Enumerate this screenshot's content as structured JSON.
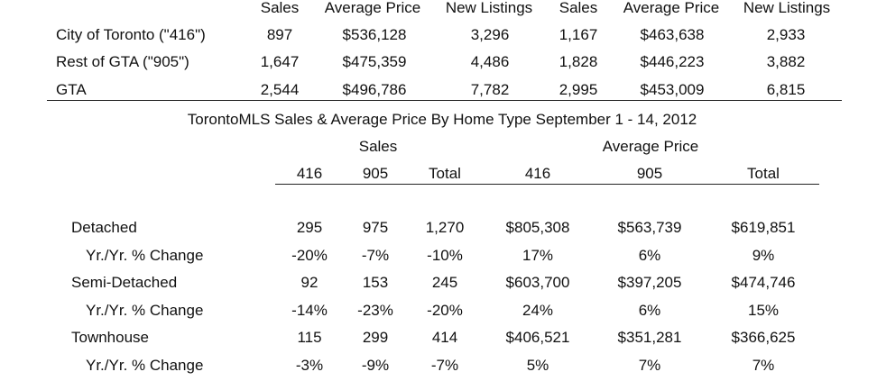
{
  "top_table": {
    "headers": [
      "Sales",
      "Average Price",
      "New Listings",
      "Sales",
      "Average Price",
      "New Listings"
    ],
    "rows": [
      {
        "label": "City of Toronto (\"416\")",
        "values": [
          "897",
          "$536,128",
          "3,296",
          "1,167",
          "$463,638",
          "2,933"
        ]
      },
      {
        "label": "Rest of GTA (\"905\")",
        "values": [
          "1,647",
          "$475,359",
          "4,486",
          "1,828",
          "$446,223",
          "3,882"
        ]
      },
      {
        "label": "GTA",
        "values": [
          "2,544",
          "$496,786",
          "7,782",
          "2,995",
          "$453,009",
          "6,815"
        ]
      }
    ]
  },
  "home_type_table": {
    "title": "TorontoMLS Sales & Average Price  By Home Type September 1 - 14, 2012",
    "group_headers": [
      "Sales",
      "Average Price"
    ],
    "sub_headers": [
      "416",
      "905",
      "Total",
      "416",
      "905",
      "Total"
    ],
    "rows": [
      {
        "label": "Detached",
        "values": [
          "295",
          "975",
          "1,270",
          "$805,308",
          "$563,739",
          "$619,851"
        ]
      },
      {
        "label": "Yr./Yr. % Change",
        "values": [
          "-20%",
          "-7%",
          "-10%",
          "17%",
          "6%",
          "9%"
        ]
      },
      {
        "label": "Semi-Detached",
        "values": [
          "92",
          "153",
          "245",
          "$603,700",
          "$397,205",
          "$474,746"
        ]
      },
      {
        "label": "Yr./Yr. % Change",
        "values": [
          "-14%",
          "-23%",
          "-20%",
          "24%",
          "6%",
          "15%"
        ]
      },
      {
        "label": "Townhouse",
        "values": [
          "115",
          "299",
          "414",
          "$406,521",
          "$351,281",
          "$366,625"
        ]
      },
      {
        "label": "Yr./Yr. % Change",
        "values": [
          "-3%",
          "-9%",
          "-7%",
          "5%",
          "7%",
          "7%"
        ]
      }
    ]
  }
}
